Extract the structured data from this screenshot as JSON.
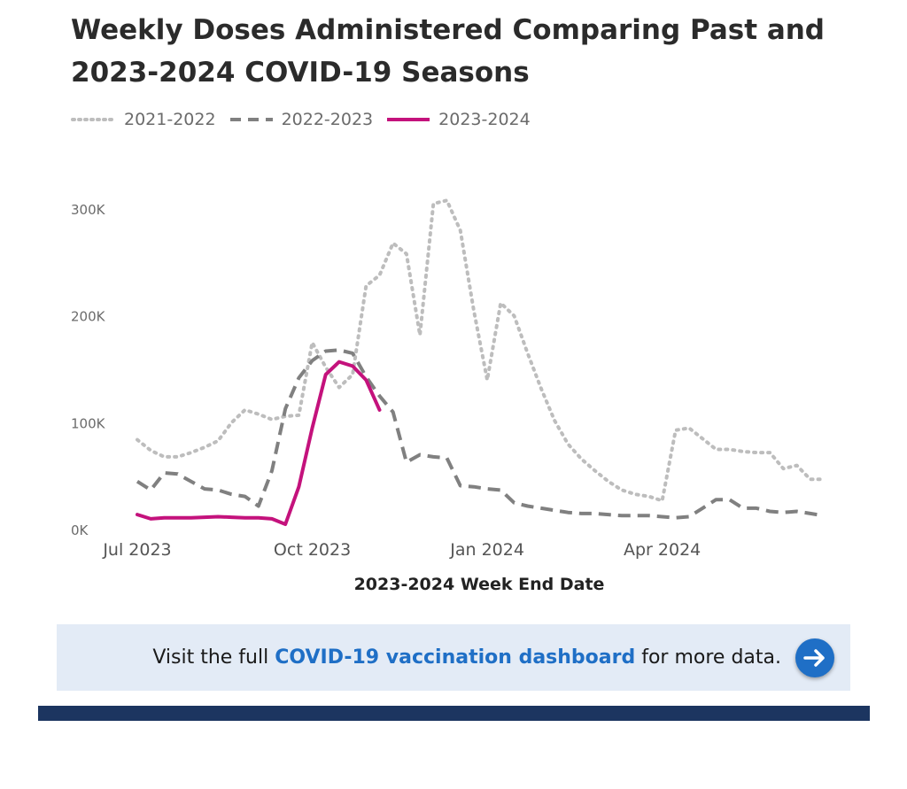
{
  "colors": {
    "s2021": "#bdbdbd",
    "s2022": "#808080",
    "s2023": "#c4127c",
    "link": "#1f6fc6",
    "banner_bg": "#e3ebf6",
    "footer": "#1c3560"
  },
  "chart_data": {
    "type": "line",
    "title": "Weekly Doses Administered Comparing Past and 2023-2024 COVID-19 Seasons",
    "xlabel": "2023-2024 Week End Date",
    "ylabel": "",
    "ylim": [
      0,
      300000
    ],
    "yticks": [
      {
        "value": 0,
        "label": "0K"
      },
      {
        "value": 100000,
        "label": "100K"
      },
      {
        "value": 200000,
        "label": "200K"
      },
      {
        "value": 300000,
        "label": "300K"
      }
    ],
    "xticks": [
      {
        "week": 0,
        "label": "Jul 2023"
      },
      {
        "week": 13,
        "label": "Oct 2023"
      },
      {
        "week": 26,
        "label": "Jan 2024"
      },
      {
        "week": 39,
        "label": "Apr 2024"
      }
    ],
    "xlim": [
      0,
      51
    ],
    "legend_position": "top-left",
    "series": [
      {
        "name": "2021-2022",
        "style": "dotted",
        "values": [
          84000,
          74000,
          68000,
          68000,
          72000,
          77000,
          83000,
          100000,
          112000,
          108000,
          103000,
          106000,
          107000,
          175000,
          152000,
          133000,
          145000,
          228000,
          238000,
          268000,
          258000,
          182000,
          305000,
          308000,
          280000,
          205000,
          140000,
          212000,
          200000,
          165000,
          132000,
          102000,
          80000,
          66000,
          55000,
          45000,
          37000,
          33000,
          31000,
          27000,
          93000,
          95000,
          85000,
          75000,
          75000,
          73000,
          72000,
          72000,
          57000,
          60000,
          47000,
          47000
        ]
      },
      {
        "name": "2022-2023",
        "style": "dashed",
        "values": [
          45000,
          37000,
          53000,
          52000,
          45000,
          38000,
          37000,
          33000,
          31000,
          22000,
          55000,
          113000,
          142000,
          158000,
          167000,
          168000,
          165000,
          143000,
          125000,
          110000,
          63000,
          70000,
          68000,
          67000,
          41000,
          40000,
          38000,
          37000,
          25000,
          22000,
          20000,
          18000,
          16000,
          15000,
          15000,
          14000,
          13000,
          13000,
          13000,
          12000,
          11000,
          12000,
          20000,
          28000,
          28000,
          20000,
          20000,
          17000,
          16000,
          17000,
          15000,
          13000
        ]
      },
      {
        "name": "2023-2024",
        "style": "solid",
        "values": [
          14000,
          10000,
          11000,
          11000,
          11000,
          11500,
          12000,
          11500,
          11000,
          11000,
          10000,
          5000,
          40000,
          95000,
          145000,
          157000,
          153000,
          140000,
          112000
        ]
      }
    ]
  },
  "banner": {
    "prefix": "Visit the full ",
    "link_text": "COVID-19 vaccination dashboard",
    "suffix": " for more data."
  }
}
